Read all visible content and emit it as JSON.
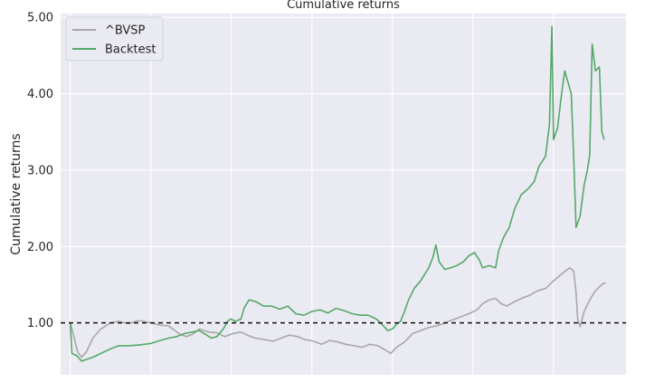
{
  "chart_data": {
    "type": "line",
    "title": "Cumulative returns",
    "xlabel": "",
    "ylabel": "Cumulative returns",
    "ylim": [
      0.32,
      5.05
    ],
    "yticks": [
      1.0,
      2.0,
      3.0,
      4.0,
      5.0
    ],
    "ytick_labels": [
      "1.00",
      "2.00",
      "3.00",
      "4.00",
      "5.00"
    ],
    "x_count": 7,
    "grid": true,
    "background": "#eaeaf2",
    "baseline": 1.0,
    "legend": {
      "placement": "top-left"
    },
    "series": [
      {
        "name": "^BVSP",
        "color": "#a8a8a8",
        "points": [
          [
            0.0,
            1.0
          ],
          [
            0.05,
            0.8
          ],
          [
            0.09,
            0.62
          ],
          [
            0.14,
            0.55
          ],
          [
            0.2,
            0.62
          ],
          [
            0.28,
            0.8
          ],
          [
            0.38,
            0.92
          ],
          [
            0.5,
            1.0
          ],
          [
            0.6,
            1.02
          ],
          [
            0.72,
            0.99
          ],
          [
            0.85,
            1.03
          ],
          [
            1.0,
            1.0
          ],
          [
            1.12,
            0.97
          ],
          [
            1.22,
            0.96
          ],
          [
            1.3,
            0.9
          ],
          [
            1.36,
            0.85
          ],
          [
            1.44,
            0.82
          ],
          [
            1.52,
            0.85
          ],
          [
            1.6,
            0.92
          ],
          [
            1.72,
            0.88
          ],
          [
            1.82,
            0.87
          ],
          [
            1.92,
            0.82
          ],
          [
            2.02,
            0.86
          ],
          [
            2.12,
            0.88
          ],
          [
            2.22,
            0.83
          ],
          [
            2.3,
            0.8
          ],
          [
            2.42,
            0.78
          ],
          [
            2.52,
            0.76
          ],
          [
            2.62,
            0.8
          ],
          [
            2.72,
            0.84
          ],
          [
            2.82,
            0.82
          ],
          [
            2.92,
            0.78
          ],
          [
            3.02,
            0.76
          ],
          [
            3.12,
            0.72
          ],
          [
            3.22,
            0.77
          ],
          [
            3.32,
            0.75
          ],
          [
            3.42,
            0.72
          ],
          [
            3.52,
            0.7
          ],
          [
            3.62,
            0.68
          ],
          [
            3.72,
            0.72
          ],
          [
            3.82,
            0.7
          ],
          [
            3.92,
            0.64
          ],
          [
            3.98,
            0.6
          ],
          [
            4.05,
            0.68
          ],
          [
            4.15,
            0.75
          ],
          [
            4.25,
            0.86
          ],
          [
            4.35,
            0.9
          ],
          [
            4.45,
            0.94
          ],
          [
            4.55,
            0.96
          ],
          [
            4.65,
            1.0
          ],
          [
            4.75,
            1.04
          ],
          [
            4.85,
            1.08
          ],
          [
            4.95,
            1.12
          ],
          [
            5.05,
            1.17
          ],
          [
            5.12,
            1.25
          ],
          [
            5.2,
            1.3
          ],
          [
            5.28,
            1.32
          ],
          [
            5.35,
            1.25
          ],
          [
            5.42,
            1.22
          ],
          [
            5.5,
            1.27
          ],
          [
            5.6,
            1.32
          ],
          [
            5.7,
            1.36
          ],
          [
            5.8,
            1.42
          ],
          [
            5.9,
            1.45
          ],
          [
            6.0,
            1.55
          ],
          [
            6.08,
            1.62
          ],
          [
            6.15,
            1.68
          ],
          [
            6.2,
            1.72
          ],
          [
            6.25,
            1.68
          ],
          [
            6.28,
            1.4
          ],
          [
            6.3,
            1.05
          ],
          [
            6.33,
            0.95
          ],
          [
            6.38,
            1.15
          ],
          [
            6.45,
            1.3
          ],
          [
            6.52,
            1.42
          ],
          [
            6.58,
            1.48
          ],
          [
            6.62,
            1.52
          ],
          [
            6.65,
            1.52
          ]
        ]
      },
      {
        "name": "Backtest",
        "color": "#55a868",
        "points": [
          [
            0.0,
            1.0
          ],
          [
            0.02,
            0.6
          ],
          [
            0.08,
            0.57
          ],
          [
            0.14,
            0.5
          ],
          [
            0.2,
            0.52
          ],
          [
            0.28,
            0.55
          ],
          [
            0.38,
            0.6
          ],
          [
            0.5,
            0.66
          ],
          [
            0.6,
            0.7
          ],
          [
            0.72,
            0.7
          ],
          [
            0.85,
            0.71
          ],
          [
            1.0,
            0.73
          ],
          [
            1.12,
            0.77
          ],
          [
            1.22,
            0.8
          ],
          [
            1.32,
            0.82
          ],
          [
            1.42,
            0.86
          ],
          [
            1.52,
            0.88
          ],
          [
            1.6,
            0.9
          ],
          [
            1.68,
            0.85
          ],
          [
            1.75,
            0.8
          ],
          [
            1.82,
            0.82
          ],
          [
            1.9,
            0.92
          ],
          [
            1.96,
            1.03
          ],
          [
            2.0,
            1.05
          ],
          [
            2.05,
            1.02
          ],
          [
            2.12,
            1.05
          ],
          [
            2.16,
            1.2
          ],
          [
            2.22,
            1.3
          ],
          [
            2.3,
            1.28
          ],
          [
            2.4,
            1.22
          ],
          [
            2.5,
            1.22
          ],
          [
            2.6,
            1.18
          ],
          [
            2.7,
            1.22
          ],
          [
            2.8,
            1.12
          ],
          [
            2.9,
            1.1
          ],
          [
            3.0,
            1.15
          ],
          [
            3.1,
            1.17
          ],
          [
            3.2,
            1.13
          ],
          [
            3.3,
            1.19
          ],
          [
            3.4,
            1.16
          ],
          [
            3.5,
            1.12
          ],
          [
            3.6,
            1.1
          ],
          [
            3.7,
            1.1
          ],
          [
            3.8,
            1.05
          ],
          [
            3.88,
            0.97
          ],
          [
            3.94,
            0.9
          ],
          [
            4.0,
            0.92
          ],
          [
            4.05,
            0.98
          ],
          [
            4.1,
            1.02
          ],
          [
            4.15,
            1.15
          ],
          [
            4.2,
            1.3
          ],
          [
            4.27,
            1.45
          ],
          [
            4.35,
            1.55
          ],
          [
            4.45,
            1.72
          ],
          [
            4.5,
            1.85
          ],
          [
            4.54,
            2.02
          ],
          [
            4.58,
            1.8
          ],
          [
            4.65,
            1.7
          ],
          [
            4.72,
            1.72
          ],
          [
            4.8,
            1.75
          ],
          [
            4.88,
            1.8
          ],
          [
            4.95,
            1.88
          ],
          [
            5.02,
            1.92
          ],
          [
            5.08,
            1.82
          ],
          [
            5.12,
            1.72
          ],
          [
            5.2,
            1.75
          ],
          [
            5.28,
            1.72
          ],
          [
            5.32,
            1.95
          ],
          [
            5.38,
            2.12
          ],
          [
            5.45,
            2.25
          ],
          [
            5.52,
            2.5
          ],
          [
            5.6,
            2.68
          ],
          [
            5.68,
            2.75
          ],
          [
            5.76,
            2.85
          ],
          [
            5.82,
            3.05
          ],
          [
            5.9,
            3.18
          ],
          [
            5.95,
            3.6
          ],
          [
            5.98,
            4.88
          ],
          [
            6.0,
            3.4
          ],
          [
            6.05,
            3.55
          ],
          [
            6.1,
            4.0
          ],
          [
            6.14,
            4.3
          ],
          [
            6.18,
            4.15
          ],
          [
            6.22,
            4.0
          ],
          [
            6.25,
            3.2
          ],
          [
            6.28,
            2.25
          ],
          [
            6.33,
            2.4
          ],
          [
            6.38,
            2.8
          ],
          [
            6.42,
            3.0
          ],
          [
            6.45,
            3.2
          ],
          [
            6.48,
            4.65
          ],
          [
            6.52,
            4.3
          ],
          [
            6.57,
            4.35
          ],
          [
            6.6,
            3.5
          ],
          [
            6.63,
            3.4
          ]
        ]
      }
    ]
  }
}
